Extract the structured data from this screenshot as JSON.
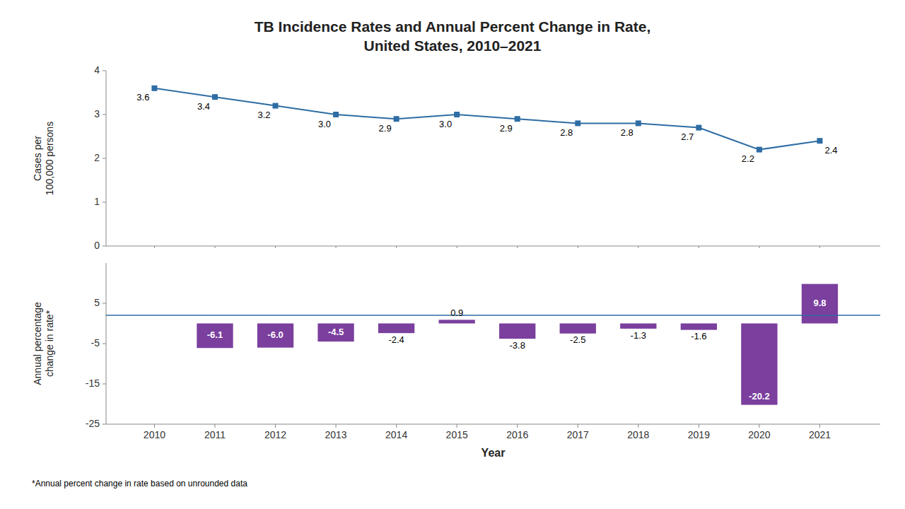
{
  "chart_data": [
    {
      "type": "line",
      "title": "TB Incidence Rates and Annual Percent Change in Rate,\nUnited States, 2010–2021",
      "y_label": "Cases per\n100,000 persons",
      "x": [
        2010,
        2011,
        2012,
        2013,
        2014,
        2015,
        2016,
        2017,
        2018,
        2019,
        2020,
        2021
      ],
      "values": [
        3.6,
        3.4,
        3.2,
        3.0,
        2.9,
        3.0,
        2.9,
        2.8,
        2.8,
        2.7,
        2.2,
        2.4
      ],
      "value_labels": [
        "3.6",
        "3.4",
        "3.2",
        "3.0",
        "2.9",
        "3.0",
        "2.9",
        "2.8",
        "2.8",
        "2.7",
        "2.2",
        "2.4"
      ],
      "color": "#2e6da4",
      "marker": "square",
      "data_labels": true,
      "xlim": [
        2009.2,
        2022.0
      ],
      "xticks": [
        2010,
        2011,
        2012,
        2013,
        2014,
        2015,
        2016,
        2017,
        2018,
        2019,
        2020,
        2021
      ],
      "ylim": [
        0,
        4
      ],
      "yticks": [
        0,
        1,
        2,
        3,
        4
      ],
      "tick_labels": "y",
      "grid": false
    },
    {
      "type": "bar",
      "x_label": "Year",
      "y_label": "Annual percentage\nchange in rate*",
      "footnote": "*Annual percent change in rate based on unrounded data",
      "x": [
        2010,
        2011,
        2012,
        2013,
        2014,
        2015,
        2016,
        2017,
        2018,
        2019,
        2020,
        2021
      ],
      "values": [
        null,
        -6.1,
        -6.0,
        -4.5,
        -2.4,
        0.9,
        -3.8,
        -2.5,
        -1.3,
        -1.6,
        -20.2,
        9.8
      ],
      "value_labels": [
        null,
        "-6.1",
        "-6.0",
        "-4.5",
        "-2.4",
        "0.9",
        "-3.8",
        "-2.5",
        "-1.3",
        "-1.6",
        "-20.2",
        "9.8"
      ],
      "color": "#7b3f9e",
      "data_labels": true,
      "hline": {
        "value": 2.0,
        "color": "#2e6da4"
      },
      "xlim": [
        2009.2,
        2022.0
      ],
      "xticks": [
        2010,
        2011,
        2012,
        2013,
        2014,
        2015,
        2016,
        2017,
        2018,
        2019,
        2020,
        2021
      ],
      "ylim": [
        -25,
        15
      ],
      "yticks": [
        -25,
        -15,
        -5,
        5
      ],
      "grid": false
    }
  ]
}
